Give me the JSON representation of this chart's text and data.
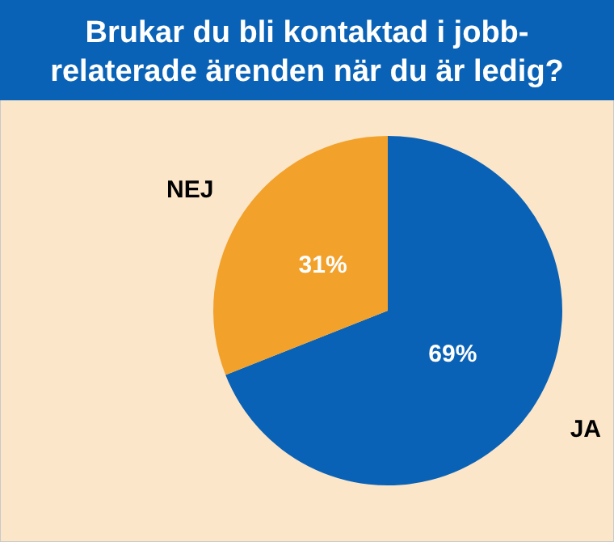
{
  "chart_data": {
    "type": "pie",
    "title": "Brukar du bli kontaktad i jobb-relaterade ärenden när du är ledig?",
    "categories": [
      "JA",
      "NEJ"
    ],
    "values": [
      69,
      31
    ],
    "colors": [
      "#0a62b6",
      "#f2a12b"
    ],
    "value_labels": [
      "69%",
      "31%"
    ]
  }
}
